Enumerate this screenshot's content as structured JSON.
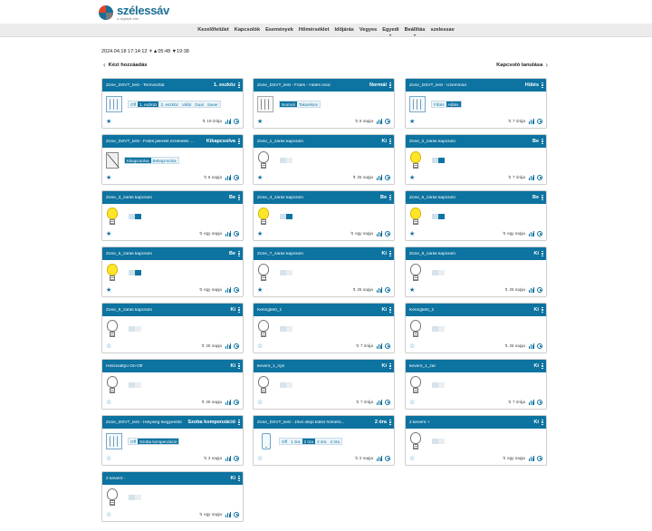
{
  "app": {
    "logo_title": "szélessáv",
    "logo_sub": "a digitális élet"
  },
  "nav": [
    "Kezelőfelület",
    "Kapcsolók",
    "Események",
    "Hőmérséklet",
    "Időjárás",
    "Vegyes",
    "Egyedi",
    "Beállítás",
    "szelessav"
  ],
  "status": {
    "datetime": "2024.04.18 17:14:12 ☀▲05:48 ▼19:38"
  },
  "toolbar": {
    "left": "Kézi hozzáadás",
    "right": "Kapcsoló tanulása"
  },
  "cards": [
    {
      "title": "Zone_DSVT_test - Termosztát",
      "state": "1. eszköz",
      "since": "19 órája",
      "starred": true,
      "kind": "radiator",
      "options": [
        "Off",
        "1. eszköz",
        "2. eszköz",
        "Váltó",
        "Dual",
        "Saver"
      ],
      "selected": 1
    },
    {
      "title": "Zone_DSVT_test - Fűtés - Hűtés mód",
      "state": "Normál",
      "since": "6 napja",
      "starred": true,
      "kind": "radiator-grey",
      "options": [
        "Normál",
        "Takarékos"
      ],
      "selected": 0
    },
    {
      "title": "Zone_DSVT_test - Üzemmód",
      "state": "Hűtés",
      "since": "7 órája",
      "starred": true,
      "kind": "radiator",
      "options": [
        "Fűtés",
        "Hűtés"
      ],
      "selected": 1
    },
    {
      "title": "Zone_DSVT_test - Fűtés jelenlét érzékelés ...",
      "state": "Kikapcsolva",
      "since": "6 napja",
      "starred": true,
      "kind": "noicon",
      "options": [
        "Kikapcsolva",
        "Bekapcsolva"
      ],
      "selected": 0
    },
    {
      "title": "Zone_1_zárás kapcsoló",
      "state": "Ki",
      "since": "25 napja",
      "starred": true,
      "kind": "bulb-off"
    },
    {
      "title": "Zone_2_zárás kapcsoló",
      "state": "Be",
      "since": "7 órája",
      "starred": true,
      "kind": "bulb-on"
    },
    {
      "title": "Zone_3_zárás kapcsoló",
      "state": "Be",
      "since": "egy napja",
      "starred": true,
      "kind": "bulb-on"
    },
    {
      "title": "Zone_4_zárás kapcsoló",
      "state": "Be",
      "since": "egy napja",
      "starred": true,
      "kind": "bulb-on"
    },
    {
      "title": "Zone_5_zárás kapcsoló",
      "state": "Be",
      "since": "egy napja",
      "starred": true,
      "kind": "bulb-on"
    },
    {
      "title": "Zone_6_zárás kapcsoló",
      "state": "Be",
      "since": "egy napja",
      "starred": true,
      "kind": "bulb-on"
    },
    {
      "title": "Zone_7_zárás kapcsoló",
      "state": "Ki",
      "since": "25 napja",
      "starred": true,
      "kind": "bulb-off"
    },
    {
      "title": "Zone_8_zárás kapcsoló",
      "state": "Ki",
      "since": "25 napja",
      "starred": true,
      "kind": "bulb-off"
    },
    {
      "title": "Zone_9_zárás kapcsoló",
      "state": "Ki",
      "since": "25 napja",
      "starred": false,
      "kind": "bulb-off"
    },
    {
      "title": "Keringtető_1",
      "state": "Ki",
      "since": "7 órája",
      "starred": false,
      "kind": "bulb-off"
    },
    {
      "title": "Keringtető_2",
      "state": "Ki",
      "since": "25 napja",
      "starred": false,
      "kind": "bulb-off"
    },
    {
      "title": "Hőszivattyú On-Off",
      "state": "Ki",
      "since": "25 napja",
      "starred": false,
      "kind": "bulb-off"
    },
    {
      "title": "keverő_1_nyit",
      "state": "Ki",
      "since": "7 órája",
      "starred": false,
      "kind": "bulb-off"
    },
    {
      "title": "keverő_1_zár",
      "state": "Ki",
      "since": "7 órája",
      "starred": false,
      "kind": "bulb-off"
    },
    {
      "title": "Zone_DSVT_test - Helyiség kiegyenlítő",
      "state": "Szoba kompenzáció",
      "since": "3 napja",
      "starred": false,
      "kind": "radiator",
      "options": [
        "Off",
        "Szoba kompenzáció"
      ],
      "selected": 1
    },
    {
      "title": "Zone_DSVT_test - Jövő idejű külső hőmérs...",
      "state": "2 óra",
      "since": "2 napja",
      "starred": false,
      "kind": "phone",
      "options": [
        "Off",
        "1 óra",
        "2 óra",
        "3 óra",
        "4 óra"
      ],
      "selected": 2
    },
    {
      "title": "2 keverő +",
      "state": "Ki",
      "since": "egy napja",
      "starred": false,
      "kind": "bulb-off"
    },
    {
      "title": "2 keverő -",
      "state": "Ki",
      "since": "egy napja",
      "starred": false,
      "kind": "bulb-off"
    }
  ]
}
